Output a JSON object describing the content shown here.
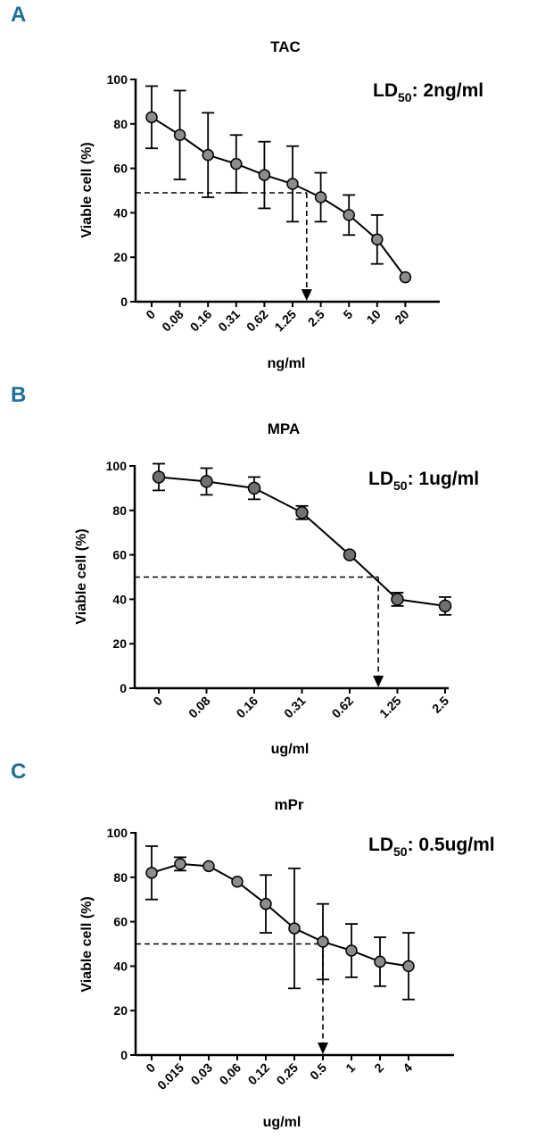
{
  "chart_data": [
    {
      "panel": "A",
      "type": "line",
      "title": "TAC",
      "annotation": "LD50: 2ng/ml",
      "annotation_main": "LD",
      "annotation_sub": "50",
      "annotation_rest": ": 2ng/ml",
      "xlabel": "ng/ml",
      "ylabel": "Viable cell (%)",
      "ylim": [
        0,
        100
      ],
      "yticks": [
        0,
        20,
        40,
        60,
        80,
        100
      ],
      "categories": [
        "0",
        "0.08",
        "0.16",
        "0.31",
        "0.62",
        "1.25",
        "2.5",
        "5",
        "10",
        "20"
      ],
      "values": [
        83,
        75,
        66,
        62,
        57,
        53,
        47,
        39,
        28,
        11
      ],
      "errors": [
        14,
        20,
        19,
        13,
        15,
        17,
        11,
        9,
        11,
        0
      ],
      "ld50": {
        "x_position_index": 5.5,
        "y": 49
      },
      "marker_color": "#8c8c8c"
    },
    {
      "panel": "B",
      "type": "line",
      "title": "MPA",
      "annotation": "LD50: 1ug/ml",
      "annotation_main": "LD",
      "annotation_sub": "50",
      "annotation_rest": ": 1ug/ml",
      "xlabel": "ug/ml",
      "ylabel": "Viable cell (%)",
      "ylim": [
        0,
        100
      ],
      "yticks": [
        0,
        20,
        40,
        60,
        80,
        100
      ],
      "categories": [
        "0",
        "0.08",
        "0.16",
        "0.31",
        "0.62",
        "1.25",
        "2.5"
      ],
      "values": [
        95,
        93,
        90,
        79,
        60,
        40,
        37
      ],
      "errors": [
        6,
        6,
        5,
        3,
        0,
        3,
        4
      ],
      "ld50": {
        "x_position_index": 4.6,
        "y": 50
      },
      "marker_color": "#707070"
    },
    {
      "panel": "C",
      "type": "line",
      "title": "mPr",
      "annotation": "LD50: 0.5ug/ml",
      "annotation_main": "LD",
      "annotation_sub": "50",
      "annotation_rest": ": 0.5ug/ml",
      "xlabel": "ug/ml",
      "ylabel": "Viable cell (%)",
      "ylim": [
        0,
        100
      ],
      "yticks": [
        0,
        20,
        40,
        60,
        80,
        100
      ],
      "categories": [
        "0",
        "0.015",
        "0.03",
        "0.06",
        "0.12",
        "0.25",
        "0.5",
        "1",
        "2",
        "4"
      ],
      "values": [
        82,
        86,
        85,
        78,
        68,
        57,
        51,
        47,
        42,
        40
      ],
      "errors": [
        12,
        3,
        0,
        0,
        13,
        27,
        17,
        12,
        11,
        15
      ],
      "ld50": {
        "x_position_index": 6,
        "y": 50
      },
      "marker_color": "#8c8c8c"
    }
  ],
  "colors": {
    "panel_letter": "#1e6f99",
    "axis": "#000000",
    "text": "#000000"
  }
}
